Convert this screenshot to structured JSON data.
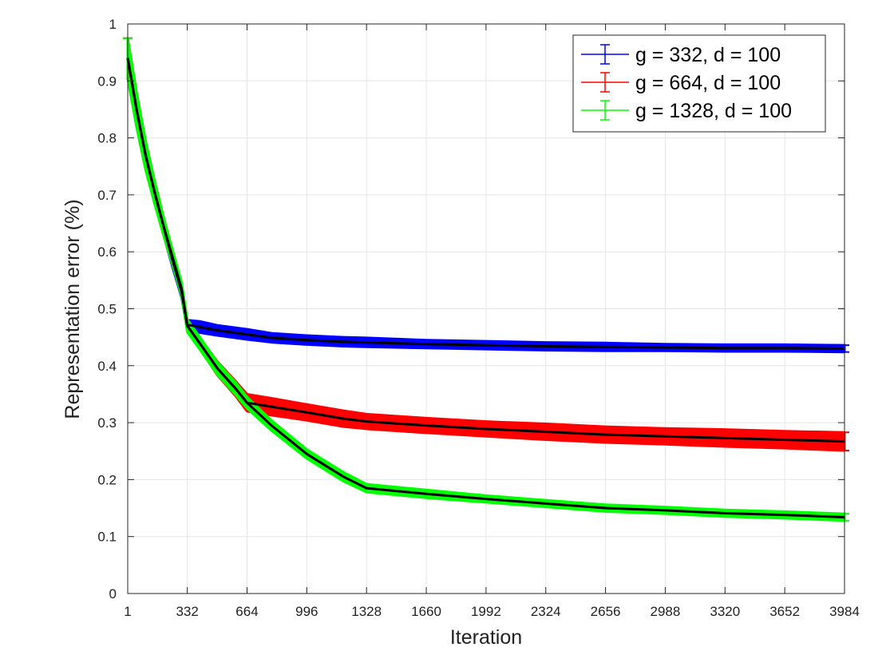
{
  "chart_data": {
    "type": "line",
    "title": "",
    "xlabel": "Iteration",
    "ylabel": "Representation error (%)",
    "xlim": [
      1,
      3984
    ],
    "ylim": [
      0,
      1
    ],
    "xticks": [
      1,
      332,
      664,
      996,
      1328,
      1660,
      1992,
      2324,
      2656,
      2988,
      3320,
      3652,
      3984
    ],
    "xtick_labels": [
      "1",
      "332",
      "664",
      "996",
      "1328",
      "1660",
      "1992",
      "2324",
      "2656",
      "2988",
      "3320",
      "3652",
      "3984"
    ],
    "yticks": [
      0,
      0.1,
      0.2,
      0.3,
      0.4,
      0.5,
      0.6,
      0.7,
      0.8,
      0.9,
      1
    ],
    "ytick_labels": [
      "0",
      "0.1",
      "0.2",
      "0.3",
      "0.4",
      "0.5",
      "0.6",
      "0.7",
      "0.8",
      "0.9",
      "1"
    ],
    "grid": true,
    "legend_position": "top-right",
    "mean_line_color": "#000000",
    "series": [
      {
        "name": "g = 332, d = 100",
        "color": "#0000ff",
        "x": [
          1,
          50,
          100,
          150,
          200,
          250,
          300,
          332,
          400,
          500,
          664,
          800,
          996,
          1200,
          1328,
          1660,
          1992,
          2324,
          2656,
          2988,
          3320,
          3652,
          3984
        ],
        "y": [
          0.94,
          0.85,
          0.77,
          0.705,
          0.645,
          0.585,
          0.53,
          0.472,
          0.468,
          0.462,
          0.455,
          0.449,
          0.445,
          0.442,
          0.441,
          0.438,
          0.436,
          0.434,
          0.433,
          0.432,
          0.431,
          0.431,
          0.43
        ],
        "err": [
          0.035,
          0.03,
          0.025,
          0.02,
          0.015,
          0.012,
          0.01,
          0.008,
          0.01,
          0.009,
          0.009,
          0.008,
          0.008,
          0.008,
          0.008,
          0.007,
          0.007,
          0.007,
          0.007,
          0.006,
          0.006,
          0.006,
          0.006
        ]
      },
      {
        "name": "g = 664, d = 100",
        "color": "#ff0000",
        "x": [
          1,
          50,
          100,
          150,
          200,
          250,
          300,
          332,
          400,
          500,
          600,
          664,
          800,
          996,
          1200,
          1328,
          1660,
          1992,
          2324,
          2656,
          2988,
          3320,
          3652,
          3984
        ],
        "y": [
          0.94,
          0.85,
          0.77,
          0.705,
          0.645,
          0.59,
          0.535,
          0.47,
          0.44,
          0.395,
          0.36,
          0.335,
          0.328,
          0.318,
          0.307,
          0.302,
          0.295,
          0.289,
          0.284,
          0.279,
          0.276,
          0.273,
          0.27,
          0.267
        ],
        "err": [
          0.035,
          0.03,
          0.025,
          0.02,
          0.016,
          0.013,
          0.011,
          0.01,
          0.01,
          0.012,
          0.013,
          0.015,
          0.015,
          0.014,
          0.014,
          0.013,
          0.013,
          0.013,
          0.014,
          0.014,
          0.014,
          0.015,
          0.015,
          0.016
        ]
      },
      {
        "name": "g = 1328, d = 100",
        "color": "#00ff00",
        "x": [
          1,
          50,
          100,
          150,
          200,
          250,
          300,
          332,
          400,
          500,
          600,
          664,
          800,
          996,
          1200,
          1328,
          1660,
          1992,
          2324,
          2656,
          2988,
          3320,
          3652,
          3984
        ],
        "y": [
          0.94,
          0.85,
          0.77,
          0.705,
          0.645,
          0.59,
          0.535,
          0.47,
          0.44,
          0.395,
          0.36,
          0.335,
          0.295,
          0.245,
          0.205,
          0.185,
          0.175,
          0.166,
          0.158,
          0.15,
          0.146,
          0.141,
          0.138,
          0.134
        ],
        "err": [
          0.035,
          0.03,
          0.025,
          0.02,
          0.016,
          0.013,
          0.012,
          0.011,
          0.011,
          0.011,
          0.011,
          0.01,
          0.009,
          0.008,
          0.008,
          0.007,
          0.007,
          0.006,
          0.006,
          0.006,
          0.006,
          0.006,
          0.006,
          0.006
        ]
      }
    ]
  }
}
